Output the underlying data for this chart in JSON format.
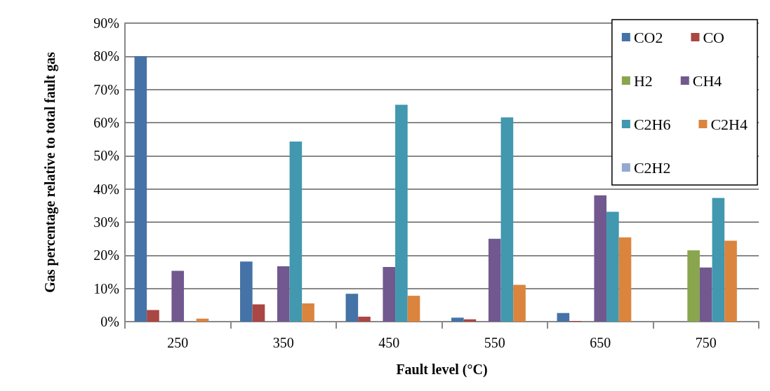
{
  "chart_data": {
    "type": "bar",
    "xlabel": "Fault level (°C)",
    "ylabel": "Gas percentage relative to total fault gas",
    "categories": [
      "250",
      "350",
      "450",
      "550",
      "650",
      "750"
    ],
    "series": [
      {
        "name": "CO2",
        "color": "#4572a7",
        "values": [
          80,
          18.1,
          8.4,
          1.2,
          2.6,
          null
        ]
      },
      {
        "name": "CO",
        "color": "#aa4643",
        "values": [
          3.5,
          5.2,
          1.5,
          0.7,
          0.2,
          0
        ]
      },
      {
        "name": "H2",
        "color": "#89a54e",
        "values": [
          0,
          0,
          0,
          0,
          0,
          21.5
        ]
      },
      {
        "name": "CH4",
        "color": "#71588f",
        "values": [
          15.3,
          16.7,
          16.5,
          25,
          38.1,
          16.3
        ]
      },
      {
        "name": "C2H6",
        "color": "#4198af",
        "values": [
          0,
          54.3,
          65.4,
          61.6,
          33.1,
          37.3
        ]
      },
      {
        "name": "C2H4",
        "color": "#db843d",
        "values": [
          0.9,
          5.5,
          7.8,
          11.1,
          25.4,
          24.4
        ]
      },
      {
        "name": "C2H2",
        "color": "#93a9cf",
        "values": [
          0,
          0,
          0,
          0,
          0,
          null
        ]
      }
    ],
    "ylim": [
      0,
      90
    ],
    "yticks": [
      {
        "value": 0,
        "label": "0%"
      },
      {
        "value": 10,
        "label": "10%"
      },
      {
        "value": 20,
        "label": "20%"
      },
      {
        "value": 30,
        "label": "30%"
      },
      {
        "value": 40,
        "label": "40%"
      },
      {
        "value": 50,
        "label": "50%"
      },
      {
        "value": 60,
        "label": "60%"
      },
      {
        "value": 70,
        "label": "70%"
      },
      {
        "value": 80,
        "label": "80%"
      },
      {
        "value": 90,
        "label": "90%"
      }
    ],
    "grid": "y",
    "legend": "top right"
  }
}
